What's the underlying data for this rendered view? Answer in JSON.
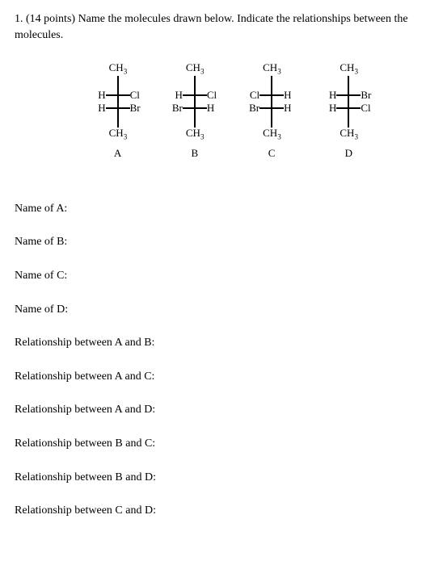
{
  "question": {
    "number": "1.",
    "points": "(14 points)",
    "text_part1": "Name the molecules drawn below. Indicate the relationships between the",
    "text_part2": "molecules."
  },
  "molecules": [
    {
      "label": "A",
      "top": "CH3",
      "row1_left": "H",
      "row1_right": "Cl",
      "row2_left": "H",
      "row2_right": "Br",
      "bottom": "CH3"
    },
    {
      "label": "B",
      "top": "CH3",
      "row1_left": "H",
      "row1_right": "Cl",
      "row2_left": "Br",
      "row2_right": "H",
      "bottom": "CH3"
    },
    {
      "label": "C",
      "top": "CH3",
      "row1_left": "Cl",
      "row1_right": "H",
      "row2_left": "Br",
      "row2_right": "H",
      "bottom": "CH3"
    },
    {
      "label": "D",
      "top": "CH3",
      "row1_left": "H",
      "row1_right": "Br",
      "row2_left": "H",
      "row2_right": "Cl",
      "bottom": "CH3"
    }
  ],
  "prompts": {
    "nameA": "Name of A:",
    "nameB": "Name of B:",
    "nameC": "Name of C:",
    "nameD": "Name of D:",
    "relAB": "Relationship between A and B:",
    "relAC": "Relationship between A and C:",
    "relAD": "Relationship between A and D:",
    "relBC": "Relationship between B and C:",
    "relBD": "Relationship between B and D:",
    "relCD": "Relationship between C and D:"
  }
}
